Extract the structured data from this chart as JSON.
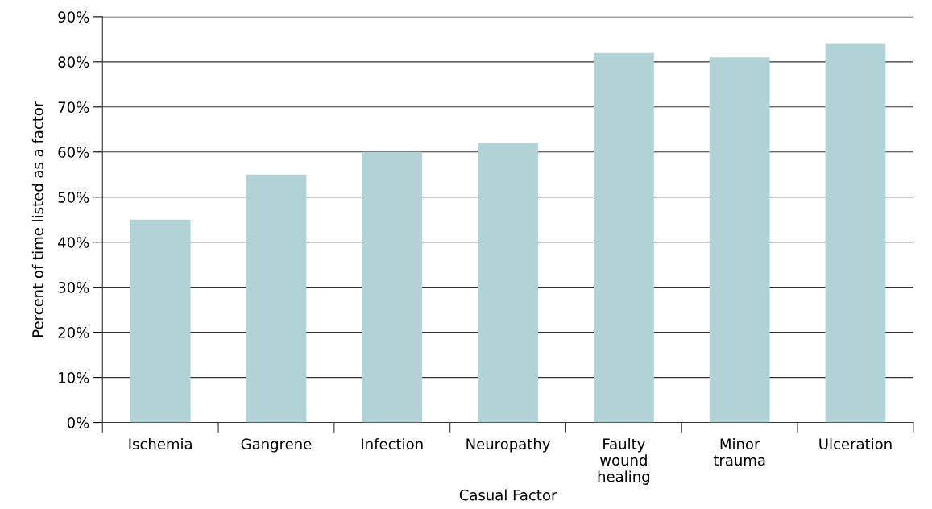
{
  "chart_data": {
    "type": "bar",
    "xlabel": "Casual Factor",
    "ylabel": "Percent of time listed as a factor",
    "categories": [
      "Ischemia",
      "Gangrene",
      "Infection",
      "Neuropathy",
      "Faulty\nwound\nhealing",
      "Minor\ntrauma",
      "Ulceration"
    ],
    "values": [
      45,
      55,
      60,
      62,
      82,
      81,
      84
    ],
    "color": "#b2d3d6",
    "ylim": [
      0,
      90
    ],
    "yticks": [
      {
        "value": 0,
        "label": "0%"
      },
      {
        "value": 10,
        "label": "10%"
      },
      {
        "value": 20,
        "label": "20%"
      },
      {
        "value": 30,
        "label": "30%"
      },
      {
        "value": 40,
        "label": "40%"
      },
      {
        "value": 50,
        "label": "50%"
      },
      {
        "value": 60,
        "label": "60%"
      },
      {
        "value": 70,
        "label": "70%"
      },
      {
        "value": 80,
        "label": "80%"
      },
      {
        "value": 90,
        "label": "90%"
      }
    ],
    "grid": "y"
  }
}
